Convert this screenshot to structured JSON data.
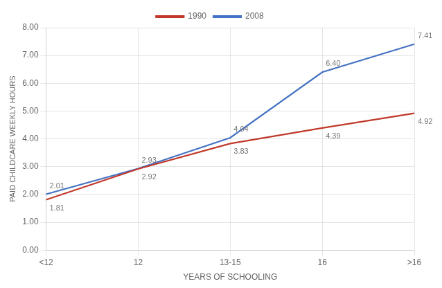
{
  "chart_data": {
    "type": "line",
    "categories": [
      "<12",
      "12",
      "13-15",
      "16",
      ">16"
    ],
    "series": [
      {
        "name": "1990",
        "color": "#c0392b",
        "values": [
          1.81,
          2.92,
          3.83,
          4.39,
          4.92
        ],
        "value_labels": [
          "1.81",
          "2.92",
          "3.83",
          "4.39",
          "4.92"
        ]
      },
      {
        "name": "2008",
        "color": "#4472c4",
        "values": [
          2.01,
          2.93,
          4.04,
          6.4,
          7.41
        ],
        "value_labels": [
          "2.01",
          "2.93",
          "4.04",
          "6.40",
          "7.41"
        ]
      }
    ],
    "x_label": "YEARS OF SCHOOLING",
    "y_label": "PAID CHILDCARE WEEKLY HOURS",
    "ylim": [
      0.0,
      8.0
    ],
    "yticks": [
      {
        "value": 0,
        "label": "0.00"
      },
      {
        "value": 1,
        "label": "1.00"
      },
      {
        "value": 2,
        "label": "2.00"
      },
      {
        "value": 3,
        "label": "3.00"
      },
      {
        "value": 4,
        "label": "4.00"
      },
      {
        "value": 5,
        "label": "5.00"
      },
      {
        "value": 6,
        "label": "6.00"
      },
      {
        "value": 7,
        "label": "7.00"
      },
      {
        "value": 8,
        "label": "8.00"
      }
    ],
    "grid": true,
    "legend": "top",
    "data_labels": true
  }
}
